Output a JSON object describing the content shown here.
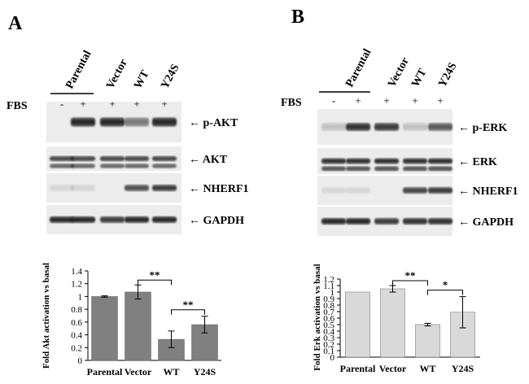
{
  "panels": {
    "a": {
      "letter": "A",
      "fbs_label": "FBS",
      "lane_groups": [
        "Parental",
        "Vector",
        "WT",
        "Y24S"
      ],
      "fbs_marks": [
        "-",
        "+",
        "+",
        "+",
        "+"
      ],
      "blot_labels": [
        "p-AKT",
        "AKT",
        "NHERF1",
        "GAPDH"
      ],
      "arrow": "←"
    },
    "b": {
      "letter": "B",
      "fbs_label": "FBS",
      "lane_groups": [
        "Parental",
        "Vector",
        "WT",
        "Y24S"
      ],
      "fbs_marks": [
        "-",
        "+",
        "+",
        "+",
        "+"
      ],
      "blot_labels": [
        "p-ERK",
        "ERK",
        "NHERF1",
        "GAPDH"
      ],
      "arrow": "←"
    }
  },
  "chart_data": [
    {
      "type": "bar",
      "categories": [
        "Parental",
        "Vector",
        "WT",
        "Y24S"
      ],
      "values": [
        1.0,
        1.07,
        0.33,
        0.56
      ],
      "errors": [
        0.01,
        0.11,
        0.13,
        0.13
      ],
      "ylabel": "Fold Akt activation vs basal",
      "ylim": [
        0,
        1.4
      ],
      "yticks": [
        "0",
        "0.2",
        "0.4",
        "0.6",
        "0.8",
        "1",
        "1.2",
        "1.4"
      ],
      "bar_color": "#808080",
      "significance": [
        {
          "from": 1,
          "to": 2,
          "label": "**"
        },
        {
          "from": 2,
          "to": 3,
          "label": "**"
        }
      ]
    },
    {
      "type": "bar",
      "categories": [
        "Parental",
        "Vector",
        "WT",
        "Y24S"
      ],
      "values": [
        1.0,
        1.05,
        0.5,
        0.69
      ],
      "errors": [
        0.0,
        0.05,
        0.02,
        0.24
      ],
      "ylabel": "Fold Erk activation vs basal",
      "ylim": [
        0,
        1.2
      ],
      "yticks": [
        "0",
        "0.1",
        "0.2",
        "0.3",
        "0.4",
        "0.5",
        "0.6",
        "0.7",
        "0.8",
        "0.9",
        "1",
        "1.1",
        "1.2"
      ],
      "bar_color": "#d9d9d9",
      "significance": [
        {
          "from": 1,
          "to": 2,
          "label": "**"
        },
        {
          "from": 2,
          "to": 3,
          "label": "*"
        }
      ]
    }
  ]
}
